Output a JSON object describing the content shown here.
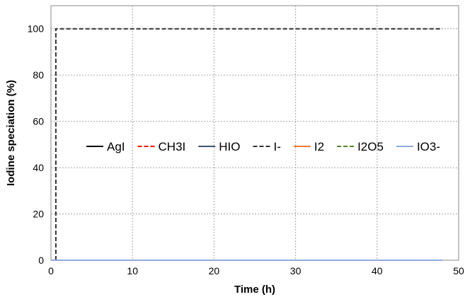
{
  "chart_data": {
    "type": "line",
    "title": "",
    "xlabel": "Time (h)",
    "ylabel": "Iodine speciation (%)",
    "xlim": [
      0,
      50
    ],
    "ylim": [
      0,
      110
    ],
    "xticks": [
      0,
      10,
      20,
      30,
      40,
      50
    ],
    "yticks": [
      0,
      20,
      40,
      60,
      80,
      100
    ],
    "grid": true,
    "legend_position": "center",
    "series": [
      {
        "name": "AgI",
        "color": "#000000",
        "dash": "solid",
        "x": [
          0,
          9.5
        ],
        "y": [
          0,
          0
        ]
      },
      {
        "name": "CH3I",
        "color": "#ff0000",
        "dash": "dashed",
        "x": [
          0,
          48
        ],
        "y": [
          0,
          0
        ]
      },
      {
        "name": "HIO",
        "color": "#44546a",
        "dash": "solid",
        "x": [
          0,
          9.5
        ],
        "y": [
          0,
          0
        ]
      },
      {
        "name": "I-",
        "color": "#333333",
        "dash": "dashed",
        "x": [
          0.6,
          0.6,
          48
        ],
        "y": [
          0,
          100,
          100
        ]
      },
      {
        "name": "I2",
        "color": "#ed7d31",
        "dash": "solid",
        "x": [
          0,
          48
        ],
        "y": [
          0,
          0
        ]
      },
      {
        "name": "I2O5",
        "color": "#548235",
        "dash": "dashed",
        "x": [
          0,
          48
        ],
        "y": [
          0,
          0
        ]
      },
      {
        "name": "IO3-",
        "color": "#8faadc",
        "dash": "solid",
        "x": [
          0,
          48
        ],
        "y": [
          0,
          0
        ]
      }
    ]
  }
}
